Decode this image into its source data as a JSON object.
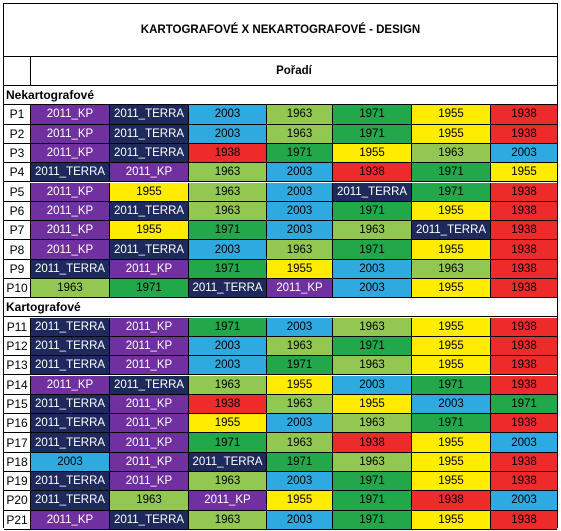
{
  "title": "KARTOGRAFOVÉ X NEKARTOGRAFOVÉ - DESIGN",
  "order_header": "Pořadí",
  "colors": {
    "2011_KP": "#7030a0",
    "2011_TERRA": "#1f2a5c",
    "2003": "#2eaae1",
    "1963": "#92c852",
    "1971": "#22a84a",
    "1955": "#ffec00",
    "1938": "#ee2b2b"
  },
  "sections": [
    {
      "label": "Nekartografové",
      "rows": [
        {
          "id": "P1",
          "cells": [
            "2011_KP",
            "2011_TERRA",
            "2003",
            "1963",
            "1971",
            "1955",
            "1938"
          ]
        },
        {
          "id": "P2",
          "cells": [
            "2011_KP",
            "2011_TERRA",
            "2003",
            "1963",
            "1971",
            "1955",
            "1938"
          ]
        },
        {
          "id": "P3",
          "cells": [
            "2011_KP",
            "2011_TERRA",
            "1938",
            "1971",
            "1955",
            "1963",
            "2003"
          ]
        },
        {
          "id": "P4",
          "cells": [
            "2011_TERRA",
            "2011_KP",
            "1963",
            "2003",
            "1938",
            "1971",
            "1955"
          ]
        },
        {
          "id": "P5",
          "cells": [
            "2011_KP",
            "1955",
            "1963",
            "2003",
            "2011_TERRA",
            "1971",
            "1938"
          ]
        },
        {
          "id": "P6",
          "cells": [
            "2011_KP",
            "2011_TERRA",
            "1963",
            "2003",
            "1971",
            "1955",
            "1938"
          ]
        },
        {
          "id": "P7",
          "cells": [
            "2011_KP",
            "1955",
            "1971",
            "2003",
            "1963",
            "2011_TERRA",
            "1938"
          ]
        },
        {
          "id": "P8",
          "cells": [
            "2011_KP",
            "2011_TERRA",
            "2003",
            "1963",
            "1971",
            "1955",
            "1938"
          ]
        },
        {
          "id": "P9",
          "cells": [
            "2011_TERRA",
            "2011_KP",
            "1971",
            "1955",
            "2003",
            "1963",
            "1938"
          ]
        },
        {
          "id": "P10",
          "cells": [
            "1963",
            "1971",
            "2011_TERRA",
            "2011_KP",
            "2003",
            "1955",
            "1938"
          ]
        }
      ]
    },
    {
      "label": "Kartografové",
      "rows": [
        {
          "id": "P11",
          "cells": [
            "2011_TERRA",
            "2011_KP",
            "1971",
            "2003",
            "1963",
            "1955",
            "1938"
          ]
        },
        {
          "id": "P12",
          "cells": [
            "2011_TERRA",
            "2011_KP",
            "2003",
            "1963",
            "1971",
            "1955",
            "1938"
          ]
        },
        {
          "id": "P13",
          "cells": [
            "2011_TERRA",
            "2011_KP",
            "2003",
            "1971",
            "1963",
            "1955",
            "1938"
          ]
        },
        {
          "id": "P14",
          "cells": [
            "2011_KP",
            "2011_TERRA",
            "1963",
            "1955",
            "2003",
            "1971",
            "1938"
          ]
        },
        {
          "id": "P15",
          "cells": [
            "2011_TERRA",
            "2011_KP",
            "1938",
            "1963",
            "1955",
            "2003",
            "1971"
          ]
        },
        {
          "id": "P16",
          "cells": [
            "2011_TERRA",
            "2011_KP",
            "1955",
            "2003",
            "1963",
            "1971",
            "1938"
          ]
        },
        {
          "id": "P17",
          "cells": [
            "2011_TERRA",
            "2011_KP",
            "1971",
            "1963",
            "1938",
            "1955",
            "2003"
          ]
        },
        {
          "id": "P18",
          "cells": [
            "2003",
            "2011_KP",
            "2011_TERRA",
            "1971",
            "1963",
            "1955",
            "1938"
          ]
        },
        {
          "id": "P19",
          "cells": [
            "2011_TERRA",
            "2011_KP",
            "1963",
            "2003",
            "1971",
            "1955",
            "1938"
          ]
        },
        {
          "id": "P20",
          "cells": [
            "2011_TERRA",
            "1963",
            "2011_KP",
            "1955",
            "1971",
            "1938",
            "2003"
          ]
        },
        {
          "id": "P21",
          "cells": [
            "2011_KP",
            "2011_TERRA",
            "1963",
            "2003",
            "1971",
            "1955",
            "1938"
          ]
        }
      ]
    }
  ]
}
